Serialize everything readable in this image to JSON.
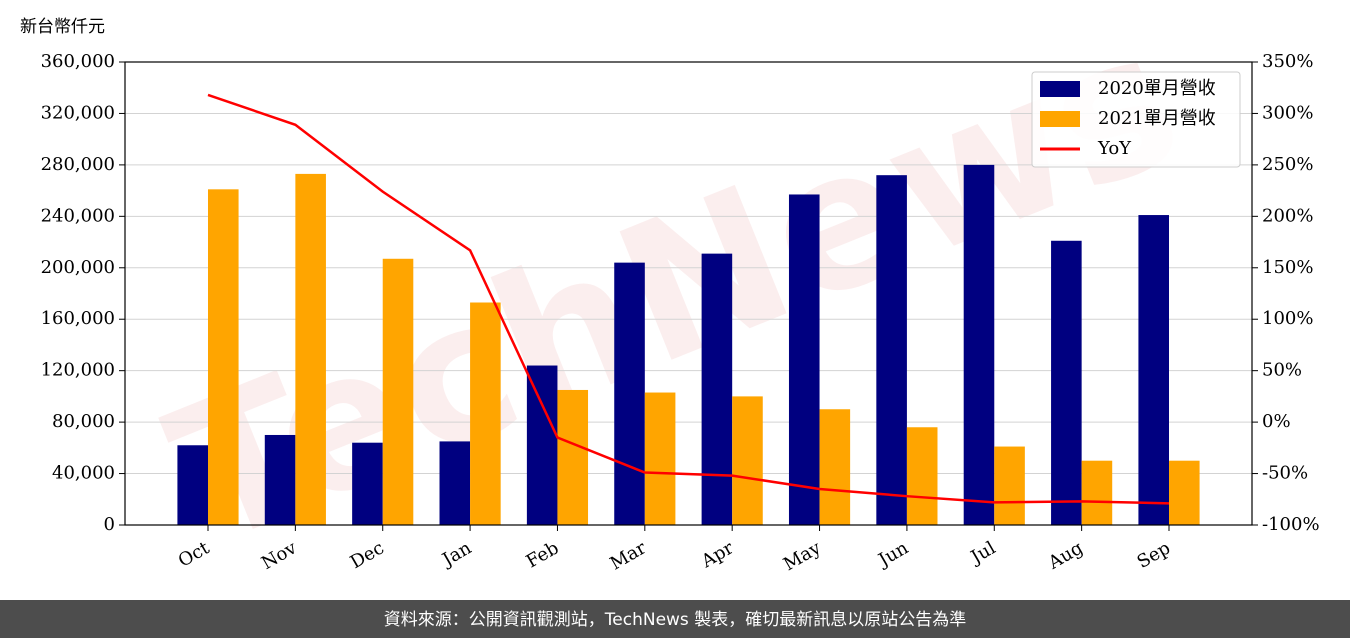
{
  "chart_data": {
    "type": "bar_line",
    "y_label": "新台幣仟元",
    "watermark": "TechNews",
    "source": "資料來源：公開資訊觀測站，TechNews 製表，確切最新訊息以原站公告為準",
    "categories": [
      "Oct",
      "Nov",
      "Dec",
      "Jan",
      "Feb",
      "Mar",
      "Apr",
      "May",
      "Jun",
      "Jul",
      "Aug",
      "Sep"
    ],
    "series": [
      {
        "name": "2020單月營收",
        "type": "bar",
        "color": "#000080",
        "values": [
          62000,
          70000,
          64000,
          65000,
          124000,
          204000,
          211000,
          257000,
          272000,
          280000,
          221000,
          241000
        ]
      },
      {
        "name": "2021單月營收",
        "type": "bar",
        "color": "#ffa500",
        "values": [
          261000,
          273000,
          207000,
          173000,
          105000,
          103000,
          100000,
          90000,
          76000,
          61000,
          50000,
          50000
        ]
      },
      {
        "name": "YoY",
        "type": "line",
        "axis": "y2",
        "color": "#ff0000",
        "values": [
          318,
          289,
          224,
          167,
          -15,
          -49,
          -52,
          -65,
          -72,
          -78,
          -77,
          -79
        ]
      }
    ],
    "ylim": [
      0,
      360000
    ],
    "yticks": [
      0,
      {
        "value": 40000,
        "label": "40,000"
      },
      {
        "value": 80000,
        "label": "80,000"
      },
      {
        "value": 120000,
        "label": "120,000"
      },
      {
        "value": 160000,
        "label": "160,000"
      },
      {
        "value": 200000,
        "label": "200,000"
      },
      {
        "value": 240000,
        "label": "240,000"
      },
      {
        "value": 280000,
        "label": "280,000"
      },
      {
        "value": 320000,
        "label": "320,000"
      },
      {
        "value": 360000,
        "label": "360,000"
      }
    ],
    "y2lim": [
      -100,
      350
    ],
    "y2ticks": [
      {
        "value": -100,
        "label": "-100%"
      },
      {
        "value": -50,
        "label": "-50%"
      },
      {
        "value": 0,
        "label": "0%"
      },
      {
        "value": 50,
        "label": "50%"
      },
      {
        "value": 100,
        "label": "100%"
      },
      {
        "value": 150,
        "label": "150%"
      },
      {
        "value": 200,
        "label": "200%"
      },
      {
        "value": 250,
        "label": "250%"
      },
      {
        "value": 300,
        "label": "300%"
      },
      {
        "value": 350,
        "label": "350%"
      }
    ],
    "grid": true,
    "legend": "upper right"
  }
}
